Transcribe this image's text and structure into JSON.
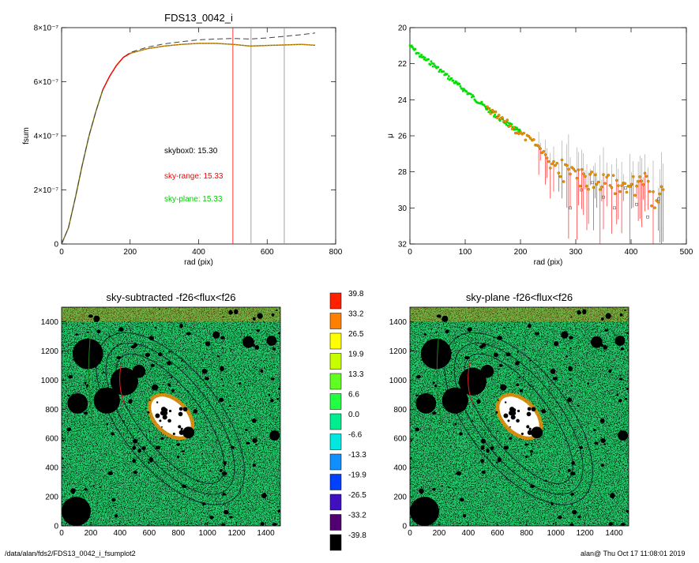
{
  "footer": {
    "path": "/data/alan/fds2/FDS13_0042_i_fsumplot2",
    "stamp": "alan@  Thu Oct 17 11:08:01 2019"
  },
  "colors": {
    "dashed": "#444444",
    "red": "#ff0000",
    "orange": "#ff8c00",
    "olive": "#7a7000",
    "green": "#00dd00",
    "grey": "#888888"
  },
  "chart_data": [
    {
      "type": "line",
      "title": "FDS13_0042_i",
      "xlabel": "rad (pix)",
      "ylabel": "fsum",
      "xlim": [
        0,
        800
      ],
      "ylim": [
        0,
        8e-07
      ],
      "xticks": [
        0,
        200,
        400,
        600,
        800
      ],
      "yticks": [
        {
          "v": 0,
          "label": "0"
        },
        {
          "v": 2e-07,
          "label": "2×10⁻⁷"
        },
        {
          "v": 4e-07,
          "label": "4×10⁻⁷"
        },
        {
          "v": 6e-07,
          "label": "6×10⁻⁷"
        },
        {
          "v": 8e-07,
          "label": "8×10⁻⁷"
        }
      ],
      "series": [
        {
          "style": "solid-olive",
          "x": [
            0,
            20,
            40,
            60,
            80,
            100,
            120,
            140,
            160,
            180,
            200,
            250,
            300,
            350,
            400,
            450,
            500,
            550,
            600,
            650,
            700,
            740
          ],
          "y": [
            0,
            6e-08,
            1.7e-07,
            2.9e-07,
            4e-07,
            4.9e-07,
            5.7e-07,
            6.2e-07,
            6.6e-07,
            6.9e-07,
            7.05e-07,
            7.22e-07,
            7.32e-07,
            7.38e-07,
            7.42e-07,
            7.42e-07,
            7.38e-07,
            7.32e-07,
            7.34e-07,
            7.36e-07,
            7.38e-07,
            7.35e-07
          ]
        },
        {
          "style": "dashed",
          "x": [
            0,
            20,
            40,
            60,
            80,
            100,
            120,
            140,
            160,
            180,
            200,
            250,
            300,
            350,
            400,
            450,
            500,
            550,
            600,
            650,
            700,
            740
          ],
          "y": [
            0,
            6e-08,
            1.7e-07,
            2.9e-07,
            4e-07,
            4.9e-07,
            5.7e-07,
            6.2e-07,
            6.6e-07,
            6.9e-07,
            7.08e-07,
            7.28e-07,
            7.4e-07,
            7.48e-07,
            7.55e-07,
            7.58e-07,
            7.6e-07,
            7.58e-07,
            7.62e-07,
            7.68e-07,
            7.74e-07,
            7.8e-07
          ]
        },
        {
          "style": "red-segment",
          "x": [
            120,
            140,
            160,
            180,
            200
          ],
          "y": [
            5.7e-07,
            6.2e-07,
            6.6e-07,
            6.9e-07,
            7.05e-07
          ]
        }
      ],
      "vlines": [
        {
          "x": 500,
          "color": "red"
        },
        {
          "x": 553,
          "color": "grey"
        },
        {
          "x": 650,
          "color": "grey"
        }
      ],
      "annotations": [
        {
          "text": "skybox0: 15.30",
          "color": "#000000"
        },
        {
          "text": "sky-range: 15.33",
          "color": "#ff0000"
        },
        {
          "text": "sky-plane: 15.33",
          "color": "#00cc00"
        }
      ]
    },
    {
      "type": "scatter",
      "title": "",
      "xlabel": "rad (pix)",
      "ylabel": "μ",
      "xlim": [
        0,
        500
      ],
      "ylim": [
        32,
        20
      ],
      "xticks": [
        0,
        100,
        200,
        300,
        400,
        500
      ],
      "yticks": [
        20,
        22,
        24,
        26,
        28,
        30,
        32
      ],
      "series": [
        {
          "name": "",
          "style": "green-points",
          "x": [
            0,
            10,
            20,
            40,
            60,
            80,
            100,
            120,
            140,
            160,
            180,
            200
          ],
          "y": [
            21.0,
            21.3,
            21.6,
            22.0,
            22.5,
            23.0,
            23.5,
            24.0,
            24.5,
            25.0,
            25.4,
            25.8
          ]
        },
        {
          "name": "",
          "style": "orange-points",
          "x": [
            140,
            160,
            180,
            200,
            220,
            240,
            260,
            280,
            300,
            320,
            340,
            360,
            380,
            400,
            420,
            440,
            460
          ],
          "y": [
            24.5,
            25.0,
            25.4,
            25.9,
            26.3,
            26.8,
            27.5,
            28.0,
            28.2,
            28.5,
            28.4,
            28.6,
            28.7,
            28.9,
            28.4,
            29.5,
            28.8
          ]
        },
        {
          "name": "",
          "style": "grey-points",
          "x": [
            290,
            310,
            330,
            350,
            370,
            390,
            410,
            430,
            450
          ],
          "y": [
            30.0,
            29.0,
            28.6,
            29.4,
            30.0,
            28.9,
            29.8,
            30.5,
            29.5
          ]
        }
      ]
    },
    {
      "type": "heatmap",
      "title": "sky-subtracted -f26<flux<f26",
      "xlim": [
        0,
        1500
      ],
      "ylim": [
        0,
        1500
      ],
      "xticks": [
        0,
        200,
        400,
        600,
        800,
        1000,
        1200,
        1400
      ],
      "yticks": [
        0,
        200,
        400,
        600,
        800,
        1000,
        1200,
        1400
      ]
    },
    {
      "type": "heatmap",
      "title": "sky-plane -f26<flux<f26",
      "xlim": [
        0,
        1500
      ],
      "ylim": [
        0,
        1500
      ],
      "xticks": [
        0,
        200,
        400,
        600,
        800,
        1000,
        1200,
        1400
      ],
      "yticks": [
        0,
        200,
        400,
        600,
        800,
        1000,
        1200,
        1400
      ]
    }
  ],
  "colorbar": [
    {
      "label": "39.8",
      "color": "#ff2000"
    },
    {
      "label": "33.2",
      "color": "#ff8000"
    },
    {
      "label": "26.5",
      "color": "#ffff00"
    },
    {
      "label": "19.9",
      "color": "#c8ff00"
    },
    {
      "label": "13.3",
      "color": "#60ff20"
    },
    {
      "label": "6.6",
      "color": "#20ff40"
    },
    {
      "label": "0.0",
      "color": "#00ee90"
    },
    {
      "label": "-6.6",
      "color": "#00e8e0"
    },
    {
      "label": "-13.3",
      "color": "#1090ff"
    },
    {
      "label": "-19.9",
      "color": "#0040ff"
    },
    {
      "label": "-26.5",
      "color": "#4010c0"
    },
    {
      "label": "-33.2",
      "color": "#500070"
    },
    {
      "label": "-39.8",
      "color": "#000000"
    }
  ]
}
